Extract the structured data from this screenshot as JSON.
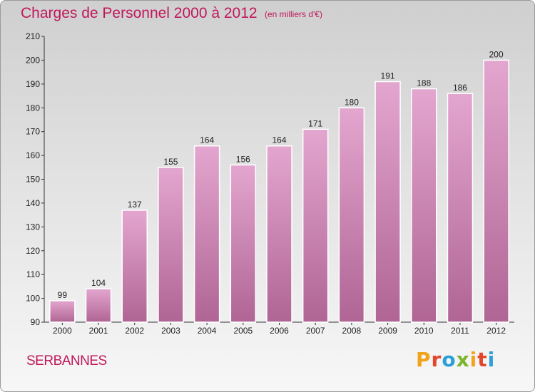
{
  "header": {
    "title": "Charges de Personnel 2000 à 2012",
    "subtitle": "(en milliers d'€)"
  },
  "footer": {
    "commune": "SERBANNES",
    "logo_text": "Proxiti",
    "logo_colors": [
      "#f2a31c",
      "#e2462b",
      "#2a9fd8",
      "#7cb529",
      "#f2a31c",
      "#e2462b",
      "#2a9fd8"
    ]
  },
  "colors": {
    "bar_top": "#e3a6cf",
    "bar_bottom": "#b06594",
    "title": "#c0185b"
  },
  "chart_data": {
    "type": "bar",
    "categories": [
      "2000",
      "2001",
      "2002",
      "2003",
      "2004",
      "2005",
      "2006",
      "2007",
      "2008",
      "2009",
      "2010",
      "2011",
      "2012"
    ],
    "values": [
      99,
      104,
      137,
      155,
      164,
      156,
      164,
      171,
      180,
      191,
      188,
      186,
      200
    ],
    "ylim": [
      90,
      210
    ],
    "yticks": [
      90,
      100,
      110,
      120,
      130,
      140,
      150,
      160,
      170,
      180,
      190,
      200,
      210
    ],
    "grid": false,
    "legend": "none"
  }
}
